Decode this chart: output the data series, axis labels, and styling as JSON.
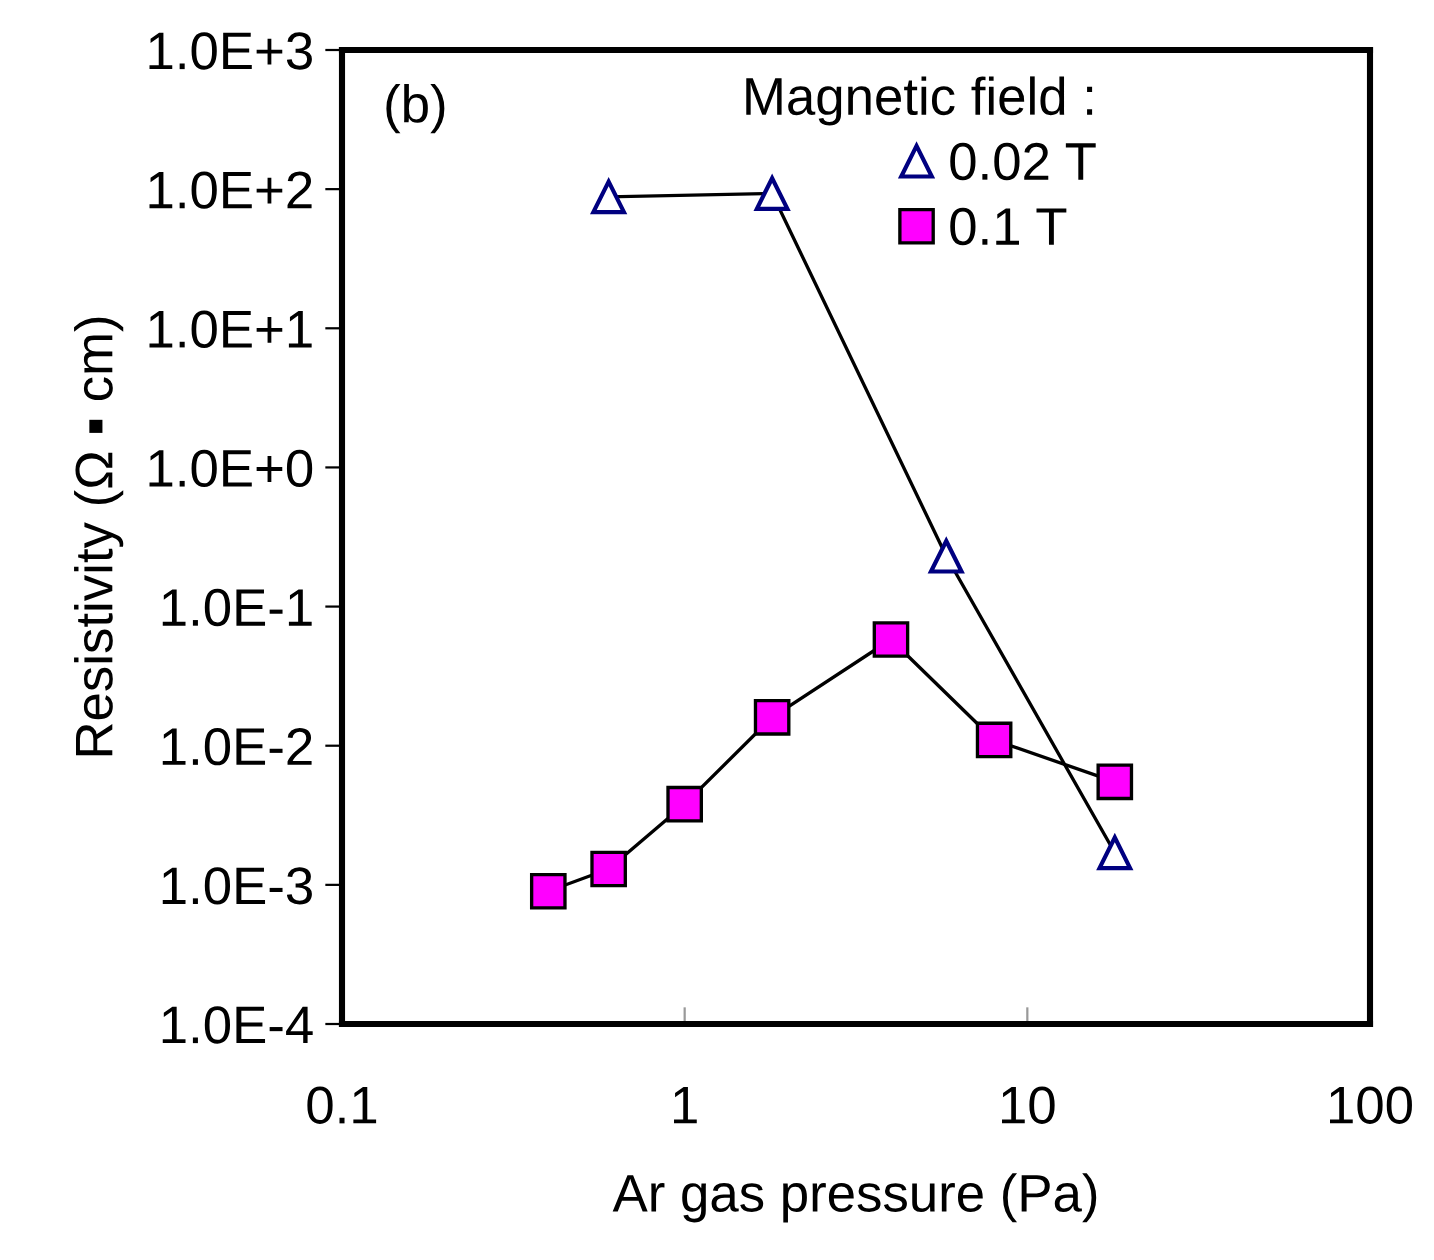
{
  "chart_data": {
    "type": "line",
    "xlabel": "Ar gas pressure (Pa)",
    "ylabel": "Resistivity (Ω ▪ cm)",
    "legend_title": "Magnetic field :",
    "annotations": [
      "(b)"
    ],
    "log": "xy",
    "xlim": [
      0.1,
      100
    ],
    "xticks": [
      0.1,
      1,
      10,
      100
    ],
    "ylim": [
      0.0001,
      1000
    ],
    "yticks": [
      {
        "value": 0.0001,
        "label": "1.0E-4"
      },
      {
        "value": 0.001,
        "label": "1.0E-3"
      },
      {
        "value": 0.01,
        "label": "1.0E-2"
      },
      {
        "value": 0.1,
        "label": "1.0E-1"
      },
      {
        "value": 1,
        "label": "1.0E+0"
      },
      {
        "value": 10,
        "label": "1.0E+1"
      },
      {
        "value": 100,
        "label": "1.0E+2"
      },
      {
        "value": 1000,
        "label": "1.0E+3"
      }
    ],
    "grid": false,
    "legend": "top right",
    "series": [
      {
        "name": "0.02 T",
        "color": "#000080",
        "marker": "triangle",
        "x": [
          0.6,
          1.8,
          5.8,
          18
        ],
        "values": [
          88,
          93,
          0.23,
          0.0017
        ]
      },
      {
        "name": "0.1 T",
        "color": "#ff00ff",
        "marker": "square",
        "x": [
          0.4,
          0.6,
          1.0,
          1.8,
          4,
          8,
          18
        ],
        "values": [
          0.0009,
          0.0013,
          0.0038,
          0.016,
          0.058,
          0.011,
          0.0055
        ]
      }
    ]
  }
}
